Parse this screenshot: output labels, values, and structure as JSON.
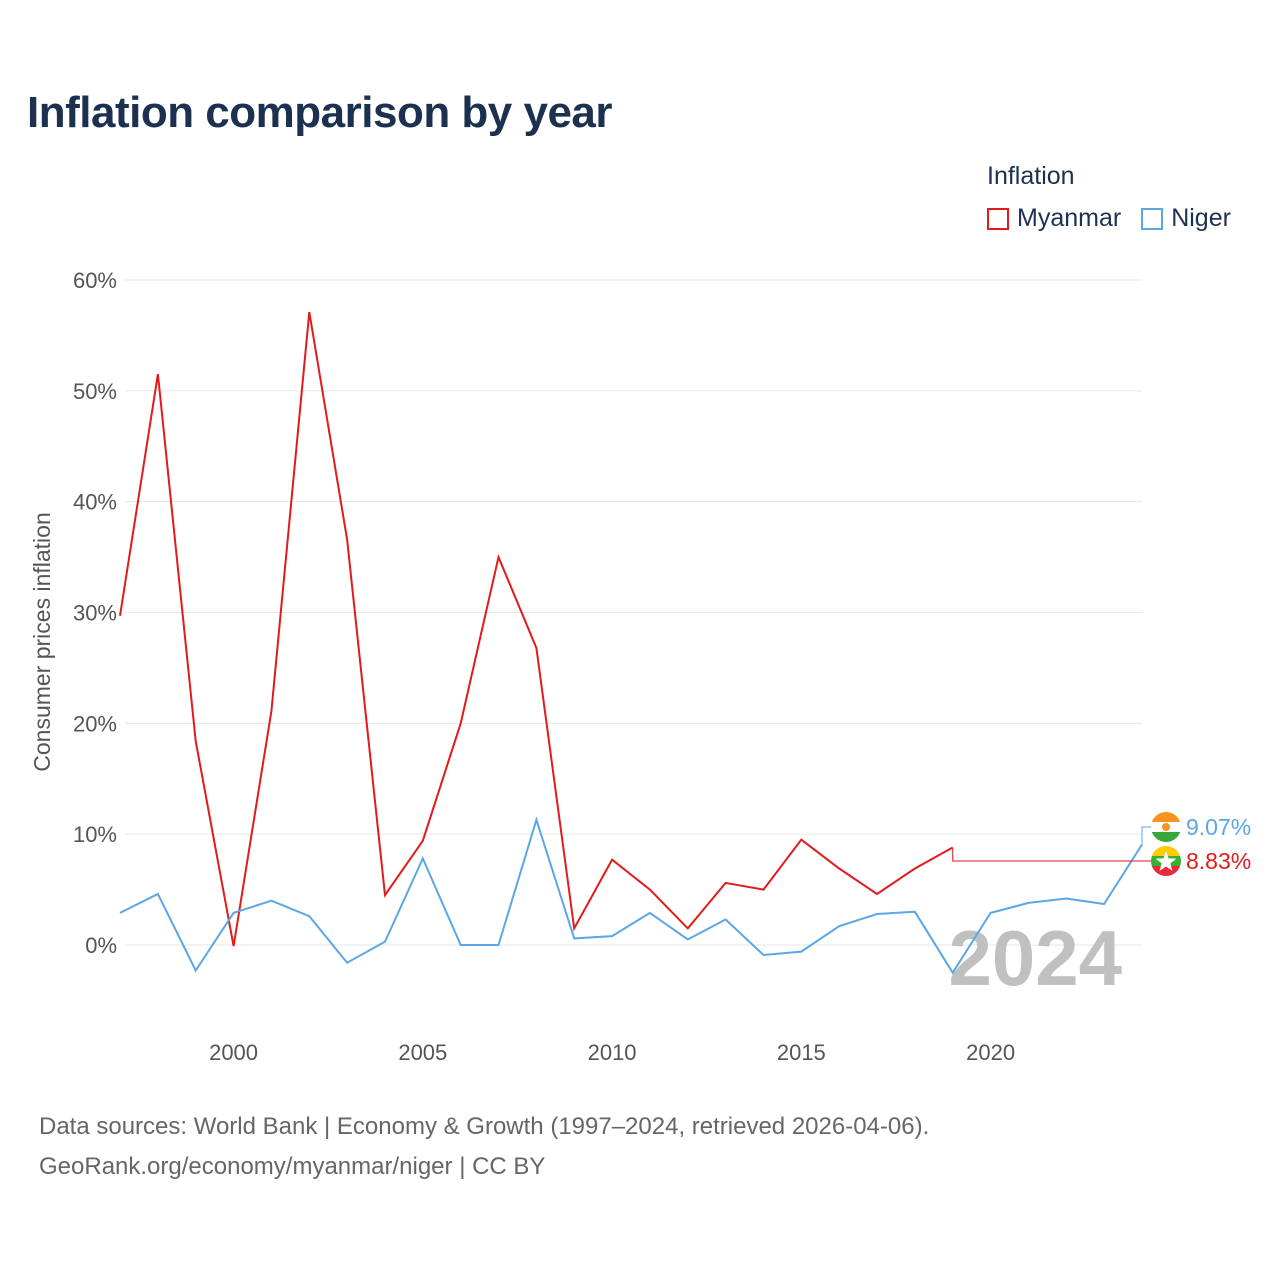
{
  "header": {
    "title": "Inflation comparison by year"
  },
  "legend": {
    "title": "Inflation",
    "items": [
      {
        "label": "Myanmar",
        "color": "#e31a1c"
      },
      {
        "label": "Niger",
        "color": "#5ba7e6"
      }
    ]
  },
  "chart_data": {
    "type": "line",
    "title": "Inflation comparison by year",
    "xlabel": "",
    "ylabel": "Consumer prices inflation",
    "xlim": [
      1997,
      2024
    ],
    "ylim": [
      -8,
      60
    ],
    "yticks": [
      0,
      10,
      20,
      30,
      40,
      50,
      60
    ],
    "ytick_labels": [
      "0%",
      "10%",
      "20%",
      "30%",
      "40%",
      "50%",
      "60%"
    ],
    "xticks": [
      2000,
      2005,
      2010,
      2015,
      2020
    ],
    "xtick_labels": [
      "2000",
      "2005",
      "2010",
      "2015",
      "2020"
    ],
    "grid": true,
    "year_marker": "2024",
    "x": [
      1997,
      1998,
      1999,
      2000,
      2001,
      2002,
      2003,
      2004,
      2005,
      2006,
      2007,
      2008,
      2009,
      2010,
      2011,
      2012,
      2013,
      2014,
      2015,
      2016,
      2017,
      2018,
      2019,
      2020,
      2021,
      2022,
      2023,
      2024
    ],
    "series": [
      {
        "name": "Myanmar",
        "color": "#e31a1c",
        "values": [
          29.7,
          51.5,
          18.4,
          -0.1,
          21.1,
          57.1,
          36.6,
          4.5,
          9.4,
          20.0,
          35.0,
          26.8,
          1.5,
          7.7,
          5.0,
          1.5,
          5.6,
          5.0,
          9.5,
          6.9,
          4.6,
          6.9,
          8.8,
          null,
          null,
          null,
          null,
          null
        ],
        "end_label": "8.83%",
        "end_value": 8.83,
        "flag": "myanmar-flag"
      },
      {
        "name": "Niger",
        "color": "#5ba7e6",
        "values": [
          2.9,
          4.6,
          -2.3,
          2.9,
          4.0,
          2.6,
          -1.6,
          0.3,
          7.8,
          0.0,
          0.0,
          11.3,
          0.6,
          0.8,
          2.9,
          0.5,
          2.3,
          -0.9,
          -0.6,
          1.7,
          2.8,
          3.0,
          -2.5,
          2.9,
          3.8,
          4.2,
          3.7,
          9.07
        ],
        "end_label": "9.07%",
        "end_value": 9.07,
        "flag": "niger-flag"
      }
    ]
  },
  "footer": {
    "source_line1": "Data sources: World Bank | Economy & Growth (1997–2024, retrieved 2026-04-06).",
    "source_line2": "GeoRank.org/economy/myanmar/niger | CC BY"
  }
}
